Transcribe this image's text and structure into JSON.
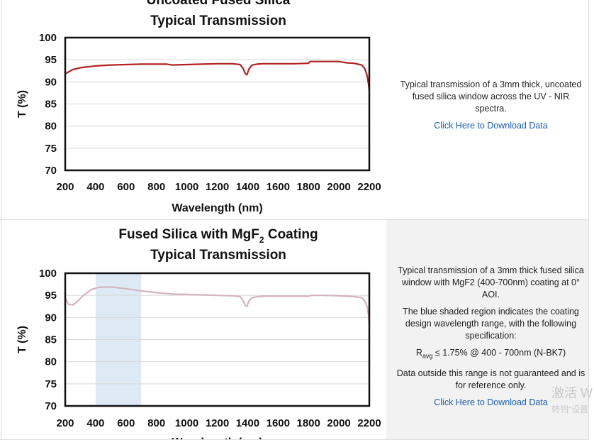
{
  "charts": [
    {
      "title_lines": [
        "Uncoated Fused Silica",
        "Typical Transmission"
      ],
      "description": [
        "Typical transmission of a 3mm thick, uncoated fused silica window across the UV - NIR spectra."
      ],
      "download_label": "Click Here to Download Data"
    },
    {
      "title_lines": [
        "Fused Silica with MgF2 Coating",
        "Typical Transmission"
      ],
      "title_parts": [
        "Fused Silica with MgF",
        "2",
        " Coating"
      ],
      "description": [
        "Typical transmission of a 3mm thick fused silica window with MgF2 (400-700nm) coating at 0° AOI.",
        "The blue shaded region indicates the coating design wavelength range, with the following specification:"
      ],
      "spec": {
        "r": "R",
        "sub": "avg",
        "rest": " ≤ 1.75% @ 400 - 700nm (N-BK7)"
      },
      "note": "Data outside this range is not guaranteed and is for reference only.",
      "download_label": "Click Here to Download Data"
    }
  ],
  "chart_data": [
    {
      "type": "line",
      "title": "Uncoated Fused Silica Typical Transmission",
      "xlabel": "Wavelength (nm)",
      "ylabel": "T (%)",
      "xlim": [
        200,
        2200
      ],
      "ylim": [
        70,
        100
      ],
      "xticks": [
        "200",
        "400",
        "600",
        "800",
        "1000",
        "1200",
        "1400",
        "1600",
        "1800",
        "2000",
        "2200"
      ],
      "yticks": [
        "100",
        "95",
        "90",
        "85",
        "80",
        "75",
        "70"
      ],
      "grid": true,
      "colors": {
        "line": "#b22222"
      },
      "series": [
        {
          "x": [
            200,
            250,
            300,
            400,
            500,
            600,
            700,
            800,
            870,
            900,
            1000,
            1100,
            1200,
            1300,
            1350,
            1370,
            1385,
            1395,
            1410,
            1430,
            1460,
            1500,
            1600,
            1700,
            1800,
            1810,
            1900,
            2000,
            2050,
            2100,
            2150,
            2170,
            2185,
            2195,
            2200
          ],
          "y": [
            91.8,
            92.8,
            93.2,
            93.6,
            93.8,
            93.9,
            94.0,
            94.0,
            94.0,
            93.8,
            93.9,
            94.0,
            94.1,
            94.1,
            93.9,
            93.0,
            91.8,
            91.6,
            93.0,
            93.8,
            94.0,
            94.1,
            94.1,
            94.1,
            94.2,
            94.6,
            94.6,
            94.6,
            94.3,
            94.2,
            93.8,
            93.0,
            91.5,
            89.5,
            88.0
          ]
        }
      ]
    },
    {
      "type": "line",
      "title": "Fused Silica with MgF2 Coating Typical Transmission",
      "xlabel": "Wavelength (nm)",
      "ylabel": "T (%)",
      "xlim": [
        200,
        2200
      ],
      "ylim": [
        70,
        100
      ],
      "xticks": [
        "200",
        "400",
        "600",
        "800",
        "1000",
        "1200",
        "1400",
        "1600",
        "1800",
        "2000",
        "2200"
      ],
      "yticks": [
        "100",
        "95",
        "90",
        "85",
        "80",
        "75",
        "70"
      ],
      "grid": true,
      "shaded_region": [
        400,
        700
      ],
      "colors": {
        "line": "#d4b4bf",
        "shade": "#dde9f5"
      },
      "series": [
        {
          "x": [
            200,
            220,
            250,
            280,
            320,
            370,
            420,
            500,
            600,
            700,
            800,
            900,
            1000,
            1100,
            1200,
            1300,
            1350,
            1370,
            1385,
            1395,
            1410,
            1430,
            1470,
            1500,
            1600,
            1700,
            1800,
            1820,
            1900,
            2000,
            2050,
            2100,
            2150,
            2170,
            2185,
            2195,
            2200
          ],
          "y": [
            94.5,
            93.0,
            92.8,
            93.6,
            95.0,
            96.3,
            96.8,
            96.9,
            96.5,
            96.0,
            95.6,
            95.3,
            95.2,
            95.1,
            95.0,
            94.9,
            94.7,
            93.8,
            92.6,
            92.5,
            93.8,
            94.5,
            94.7,
            94.8,
            94.8,
            94.8,
            94.8,
            95.0,
            95.0,
            94.9,
            94.8,
            94.7,
            94.5,
            93.7,
            92.5,
            90.5,
            88.5
          ]
        }
      ]
    }
  ]
}
